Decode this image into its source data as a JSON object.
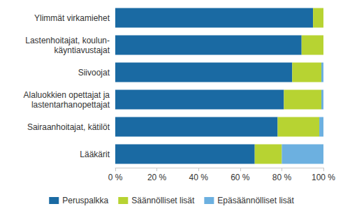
{
  "chart_data": {
    "type": "bar",
    "orientation": "horizontal",
    "stacked": true,
    "grid": false,
    "legend": "bottom",
    "categories": [
      "Ylimmät virkamiehet",
      "Lastenhoitajat, koulun-\nkäyntiavustajat",
      "Siivoojat",
      "Alaluokkien opettajat ja\nlastentarhanopettajat",
      "Sairaanhoitajat, kätilöt",
      "Lääkärit"
    ],
    "series": [
      {
        "name": "Peruspalkka",
        "color": "#1a6aa3",
        "values": [
          95,
          89.5,
          85,
          81,
          78,
          67
        ]
      },
      {
        "name": "Säännölliset lisät",
        "color": "#b7d332",
        "values": [
          5,
          10.5,
          14,
          18,
          20,
          13
        ]
      },
      {
        "name": "Epäsäännölliset lisät",
        "color": "#6cb0e0",
        "values": [
          0,
          0,
          1,
          1,
          2,
          20
        ]
      }
    ],
    "xlim": [
      0,
      100
    ],
    "xticks": [
      {
        "value": 0,
        "label": "0 %"
      },
      {
        "value": 20,
        "label": "20 %"
      },
      {
        "value": 40,
        "label": "40 %"
      },
      {
        "value": 60,
        "label": "60 %"
      },
      {
        "value": 80,
        "label": "80 %"
      },
      {
        "value": 100,
        "label": "100 %"
      }
    ]
  }
}
